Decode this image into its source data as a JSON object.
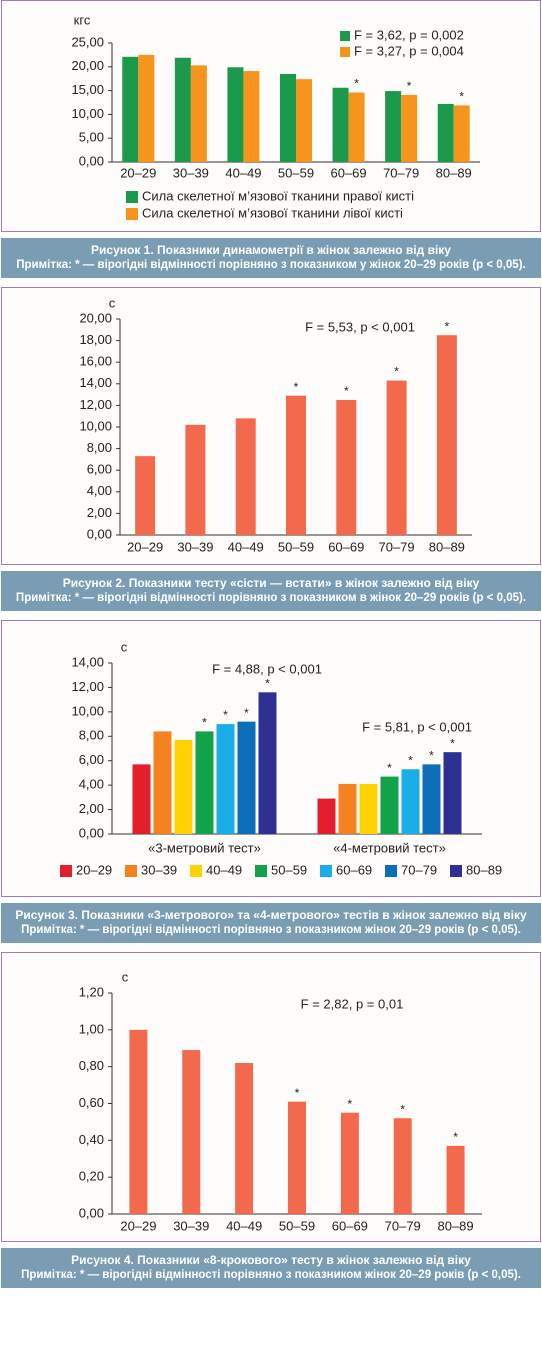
{
  "chart_data": [
    {
      "type": "bar",
      "unit": "кгс",
      "categories": [
        "20–29",
        "30–39",
        "40–49",
        "50–59",
        "60–69",
        "70–79",
        "80–89"
      ],
      "series": [
        {
          "name": "Сила скелетної м’язової тканини правої кисті",
          "stat": "F = 3,62, p = 0,002",
          "color": "#1a9a4a",
          "values": [
            22.1,
            21.9,
            19.9,
            18.5,
            15.6,
            14.9,
            12.2
          ],
          "stars": [
            null,
            null,
            null,
            null,
            null,
            null,
            null
          ]
        },
        {
          "name": "Сила скелетної м’язової тканини лівої кисті",
          "stat": "F = 3,27, p = 0,004",
          "color": "#f7941d",
          "values": [
            22.5,
            20.3,
            19.1,
            17.4,
            14.6,
            14.1,
            11.9
          ],
          "stars": [
            null,
            null,
            null,
            null,
            "*",
            "*",
            "*"
          ]
        }
      ],
      "ylim": [
        0,
        25
      ],
      "yticks": [
        {
          "value": 0,
          "label": "0,00"
        },
        {
          "value": 5,
          "label": "5,00"
        },
        {
          "value": 10,
          "label": "10,00"
        },
        {
          "value": 15,
          "label": "15,00"
        },
        {
          "value": 20,
          "label": "20,00"
        },
        {
          "value": 25,
          "label": "25,00"
        }
      ],
      "caption": "Рисунок 1.  Показники динамометрії в жінок залежно від віку",
      "note": "Примітка:  * — вірогідні відмінності порівняно з показником у жінок 20–29 років (p < 0,05)."
    },
    {
      "type": "bar",
      "unit": "с",
      "categories": [
        "20–29",
        "30–39",
        "40–49",
        "50–59",
        "60–69",
        "70–79",
        "80–89"
      ],
      "series": [
        {
          "color": "#f26a4b",
          "values": [
            7.3,
            10.2,
            10.8,
            12.9,
            12.5,
            14.3,
            18.5
          ],
          "stars": [
            null,
            null,
            null,
            "*",
            "*",
            "*",
            "*"
          ]
        }
      ],
      "annotations": [
        "F = 5,53, p < 0,001"
      ],
      "ylim": [
        0,
        20
      ],
      "yticks": [
        {
          "value": 0,
          "label": "0,00"
        },
        {
          "value": 2,
          "label": "2,00"
        },
        {
          "value": 4,
          "label": "4,00"
        },
        {
          "value": 6,
          "label": "6,00"
        },
        {
          "value": 8,
          "label": "8,00"
        },
        {
          "value": 10,
          "label": "10,00"
        },
        {
          "value": 12,
          "label": "12,00"
        },
        {
          "value": 14,
          "label": "14,00"
        },
        {
          "value": 16,
          "label": "16,00"
        },
        {
          "value": 18,
          "label": "18,00"
        },
        {
          "value": 20,
          "label": "20,00"
        }
      ],
      "caption": "Рисунок 2.  Показники тесту «сісти — встати» в жінок залежно від віку",
      "note": "Примітка:  * — вірогідні відмінності порівняно з показником в жінок 20–29 років (p < 0,05)."
    },
    {
      "type": "bar",
      "unit": "с",
      "categories": [
        "«3-метровий тест»",
        "«4-метровий тест»"
      ],
      "series": [
        {
          "name": "20–29",
          "color": "#e31e2d",
          "values": [
            5.7,
            2.9
          ],
          "stars": [
            null,
            null
          ]
        },
        {
          "name": "30–39",
          "color": "#f58220",
          "values": [
            8.4,
            4.1
          ],
          "stars": [
            null,
            null
          ]
        },
        {
          "name": "40–49",
          "color": "#ffd200",
          "values": [
            7.7,
            4.1
          ],
          "stars": [
            null,
            null
          ]
        },
        {
          "name": "50–59",
          "color": "#12a24a",
          "values": [
            8.4,
            4.7
          ],
          "stars": [
            "*",
            "*"
          ]
        },
        {
          "name": "60–69",
          "color": "#19aee8",
          "values": [
            9.0,
            5.3
          ],
          "stars": [
            "*",
            "*"
          ]
        },
        {
          "name": "70–79",
          "color": "#0c6eb8",
          "values": [
            9.2,
            5.7
          ],
          "stars": [
            "*",
            "*"
          ]
        },
        {
          "name": "80–89",
          "color": "#2e3192",
          "values": [
            11.6,
            6.7
          ],
          "stars": [
            "*",
            "*"
          ]
        }
      ],
      "annotations": [
        "F = 4,88, p < 0,001",
        "F = 5,81, p < 0,001"
      ],
      "ylim": [
        0,
        14
      ],
      "yticks": [
        {
          "value": 0,
          "label": "0,00"
        },
        {
          "value": 2,
          "label": "2,00"
        },
        {
          "value": 4,
          "label": "4,00"
        },
        {
          "value": 6,
          "label": "6,00"
        },
        {
          "value": 8,
          "label": "8,00"
        },
        {
          "value": 10,
          "label": "10,00"
        },
        {
          "value": 12,
          "label": "12,00"
        },
        {
          "value": 14,
          "label": "14,00"
        }
      ],
      "caption": "Рисунок 3.  Показники «3-метрового» та «4-метрового» тестів в жінок залежно від віку",
      "note": "Примітка:  * — вірогідні відмінності порівняно з показником жінок 20–29 років (p < 0,05)."
    },
    {
      "type": "bar",
      "unit": "с",
      "categories": [
        "20–29",
        "30–39",
        "40–49",
        "50–59",
        "60–69",
        "70–79",
        "80–89"
      ],
      "series": [
        {
          "color": "#f26a4b",
          "values": [
            1.0,
            0.89,
            0.82,
            0.61,
            0.55,
            0.52,
            0.37
          ],
          "stars": [
            null,
            null,
            null,
            "*",
            "*",
            "*",
            "*"
          ]
        }
      ],
      "annotations": [
        "F = 2,82, p = 0,01"
      ],
      "ylim": [
        0,
        1.2
      ],
      "yticks": [
        {
          "value": 0,
          "label": "0,00"
        },
        {
          "value": 0.2,
          "label": "0,20"
        },
        {
          "value": 0.4,
          "label": "0,40"
        },
        {
          "value": 0.6,
          "label": "0,60"
        },
        {
          "value": 0.8,
          "label": "0,80"
        },
        {
          "value": 1.0,
          "label": "1,00"
        },
        {
          "value": 1.2,
          "label": "1,20"
        }
      ],
      "caption": "Рисунок 4.  Показники «8-крокового» тесту в жінок залежно від віку",
      "note": "Примітка:  * — вірогідні відмінності порівняно з показником жінок 20–29 років (p < 0,05)."
    }
  ]
}
